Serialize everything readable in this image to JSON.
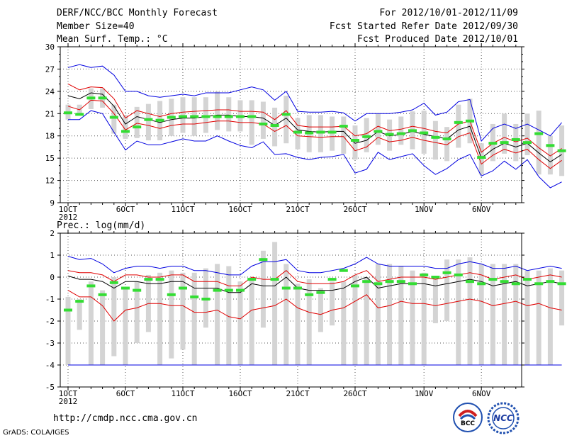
{
  "header": {
    "title": "DERF/NCC/BCC Monthly Forecast",
    "member_size": "Member Size=40",
    "variable": "Mean Surf. Temp.: °C",
    "period": "For 2012/10/01-2012/11/09",
    "started": "Fcst Started Refer Date 2012/09/30",
    "produced": "Fcst Produced Date 2012/10/01"
  },
  "footer": {
    "url": "http://cmdp.ncc.cma.gov.cn",
    "grads": "GrADS: COLA/IGES",
    "logo_bcc": "BCC",
    "logo_ncc": "NCC"
  },
  "colors": {
    "ensemble_mean": "#000000",
    "std_band": "#e00000",
    "extreme": "#0000e0",
    "observed": "#33dd33",
    "spread_bar": "#d4d4d4",
    "grid": "#555555"
  },
  "chart_data": [
    {
      "type": "line",
      "title": "Mean Surf. Temp.: °C",
      "x_tick_labels": [
        "1OCT",
        "6OCT",
        "11OCT",
        "16OCT",
        "21OCT",
        "26OCT",
        "1NOV",
        "6NOV"
      ],
      "x_tick_days": [
        1,
        6,
        11,
        16,
        21,
        26,
        32,
        37
      ],
      "year_label": "2012",
      "xlim": [
        0,
        40.5
      ],
      "ylim": [
        9,
        30
      ],
      "y_ticks": [
        9,
        12,
        15,
        18,
        21,
        24,
        27,
        30
      ],
      "y_tick_labels": [
        "9",
        "12",
        "15",
        "18",
        "21",
        "24",
        "27",
        "30"
      ],
      "series": [
        {
          "name": "ensemble mean",
          "values": [
            23.4,
            23.0,
            23.8,
            23.6,
            22.0,
            19.6,
            20.6,
            20.2,
            19.8,
            20.2,
            20.4,
            20.4,
            20.6,
            20.8,
            20.8,
            20.6,
            20.6,
            20.4,
            19.4,
            20.4,
            18.8,
            18.6,
            18.5,
            18.6,
            18.6,
            17.0,
            17.4,
            18.6,
            18.0,
            18.2,
            18.6,
            18.2,
            17.9,
            17.6,
            18.8,
            19.3,
            15.0,
            16.2,
            17.0,
            16.5,
            17.0,
            15.7,
            14.5,
            15.5
          ]
        },
        {
          "name": "std upper",
          "values": [
            25.0,
            24.2,
            24.6,
            24.5,
            23.0,
            20.4,
            21.4,
            21.0,
            20.6,
            21.0,
            21.2,
            21.3,
            21.4,
            21.5,
            21.5,
            21.3,
            21.3,
            21.2,
            20.2,
            21.4,
            19.4,
            19.2,
            19.2,
            19.2,
            19.3,
            18.0,
            18.3,
            19.3,
            18.7,
            18.9,
            19.3,
            19.0,
            18.6,
            18.4,
            19.6,
            20.0,
            15.8,
            17.0,
            17.8,
            17.2,
            17.7,
            16.4,
            15.3,
            16.3
          ]
        },
        {
          "name": "std lower",
          "values": [
            22.0,
            21.5,
            22.8,
            22.7,
            21.0,
            18.8,
            19.7,
            19.4,
            19.0,
            19.4,
            19.6,
            19.6,
            19.8,
            20.0,
            20.0,
            19.8,
            19.8,
            19.6,
            18.6,
            19.4,
            18.0,
            17.9,
            17.8,
            17.9,
            17.9,
            16.0,
            16.5,
            17.8,
            17.2,
            17.4,
            17.8,
            17.4,
            17.1,
            16.8,
            17.9,
            18.4,
            14.2,
            15.4,
            16.2,
            15.7,
            16.2,
            14.8,
            13.6,
            14.7
          ]
        },
        {
          "name": "maximum",
          "values": [
            27.2,
            27.6,
            27.2,
            27.4,
            26.2,
            24.0,
            24.0,
            23.4,
            23.2,
            23.4,
            23.6,
            23.4,
            23.8,
            23.8,
            23.8,
            24.2,
            24.6,
            24.2,
            22.8,
            24.0,
            21.3,
            21.2,
            21.2,
            21.3,
            21.1,
            20.0,
            21.0,
            21.0,
            21.0,
            21.2,
            21.5,
            22.4,
            20.8,
            21.2,
            22.6,
            22.9,
            17.3,
            19.0,
            19.6,
            19.0,
            19.6,
            18.8,
            18.0,
            19.8
          ]
        },
        {
          "name": "minimum",
          "values": [
            20.2,
            20.2,
            21.4,
            21.0,
            18.5,
            16.1,
            17.3,
            16.8,
            16.8,
            17.2,
            17.6,
            17.3,
            17.3,
            18.0,
            17.3,
            16.7,
            16.4,
            17.2,
            15.5,
            15.6,
            15.1,
            14.8,
            15.1,
            15.2,
            15.5,
            13.0,
            13.5,
            15.8,
            14.8,
            15.2,
            15.6,
            14.0,
            12.8,
            13.6,
            14.8,
            15.5,
            12.6,
            13.3,
            14.6,
            13.5,
            14.8,
            12.5,
            11.0,
            11.8
          ]
        },
        {
          "name": "observed",
          "values": [
            21.1,
            20.9,
            23.1,
            23.1,
            20.5,
            18.6,
            19.2,
            20.2,
            20.1,
            20.5,
            20.6,
            20.6,
            20.6,
            20.6,
            20.6,
            20.6,
            20.6,
            19.6,
            19.4,
            20.9,
            18.5,
            18.4,
            18.5,
            18.5,
            19.3,
            17.4,
            17.9,
            18.6,
            18.2,
            18.3,
            18.7,
            18.4,
            17.8,
            17.6,
            19.8,
            20.0,
            15.1,
            17.0,
            17.1,
            17.5,
            17.1,
            18.3,
            16.7,
            16.0
          ]
        }
      ],
      "spread_bars": {
        "high": [
          22.2,
          22.2,
          24.4,
          24.4,
          22.2,
          20.8,
          21.9,
          22.3,
          22.7,
          23.0,
          23.2,
          23.2,
          23.2,
          24.0,
          23.2,
          22.8,
          22.8,
          22.6,
          21.8,
          23.4,
          20.4,
          20.8,
          20.8,
          20.6,
          20.6,
          19.4,
          20.4,
          21.0,
          20.2,
          20.6,
          21.3,
          21.4,
          20.0,
          19.2,
          22.2,
          23.0,
          17.0,
          19.6,
          21.0,
          19.6,
          21.0,
          21.4,
          18.0,
          19.4
        ],
        "low": [
          20.2,
          20.8,
          21.6,
          21.8,
          18.3,
          17.6,
          17.7,
          17.4,
          17.4,
          18.0,
          18.4,
          18.0,
          18.4,
          18.8,
          18.6,
          18.6,
          16.8,
          17.6,
          16.6,
          17.0,
          16.2,
          15.8,
          15.8,
          16.0,
          15.6,
          14.8,
          15.8,
          16.8,
          16.0,
          16.8,
          16.2,
          15.6,
          14.8,
          14.6,
          16.4,
          17.0,
          12.8,
          14.6,
          15.6,
          14.6,
          15.4,
          12.8,
          12.8,
          12.6
        ]
      }
    },
    {
      "type": "line",
      "title": "Prec.: log(mm/d)",
      "x_tick_labels": [
        "1OCT",
        "6OCT",
        "11OCT",
        "16OCT",
        "21OCT",
        "26OCT",
        "1NOV",
        "6NOV"
      ],
      "x_tick_days": [
        1,
        6,
        11,
        16,
        21,
        26,
        32,
        37
      ],
      "year_label": "2012",
      "xlim": [
        0,
        40.5
      ],
      "ylim": [
        -5,
        2
      ],
      "y_ticks": [
        -5,
        -4,
        -3,
        -2,
        -1,
        0,
        1,
        2
      ],
      "y_tick_labels": [
        "-5",
        "-4",
        "-3",
        "-2",
        "-1",
        "0",
        "1",
        "2"
      ],
      "series": [
        {
          "name": "ensemble mean",
          "values": [
            0.05,
            -0.1,
            -0.1,
            -0.2,
            -0.5,
            -0.2,
            -0.2,
            -0.3,
            -0.3,
            -0.2,
            -0.2,
            -0.5,
            -0.5,
            -0.5,
            -0.7,
            -0.7,
            -0.3,
            -0.4,
            -0.4,
            0.0,
            -0.5,
            -0.6,
            -0.6,
            -0.6,
            -0.5,
            -0.2,
            0.0,
            -0.5,
            -0.4,
            -0.3,
            -0.3,
            -0.3,
            -0.4,
            -0.3,
            -0.2,
            -0.1,
            -0.2,
            -0.4,
            -0.3,
            -0.2,
            -0.4,
            -0.3,
            -0.2,
            -0.3
          ]
        },
        {
          "name": "std upper",
          "values": [
            0.3,
            0.2,
            0.2,
            0.1,
            -0.2,
            0.1,
            0.1,
            0.0,
            0.0,
            0.1,
            0.1,
            -0.2,
            -0.2,
            -0.2,
            -0.4,
            -0.4,
            0.0,
            -0.1,
            -0.1,
            0.3,
            -0.2,
            -0.3,
            -0.3,
            -0.3,
            -0.2,
            0.1,
            0.3,
            -0.2,
            -0.1,
            0.0,
            0.0,
            0.0,
            -0.1,
            0.0,
            0.1,
            0.2,
            0.1,
            -0.1,
            0.0,
            0.1,
            -0.1,
            0.0,
            0.1,
            0.0
          ]
        },
        {
          "name": "std lower",
          "values": [
            -0.6,
            -0.9,
            -0.9,
            -1.3,
            -2.0,
            -1.5,
            -1.4,
            -1.2,
            -1.2,
            -1.3,
            -1.3,
            -1.6,
            -1.6,
            -1.5,
            -1.8,
            -1.9,
            -1.5,
            -1.4,
            -1.3,
            -1.0,
            -1.4,
            -1.6,
            -1.7,
            -1.5,
            -1.4,
            -1.1,
            -0.8,
            -1.4,
            -1.3,
            -1.1,
            -1.2,
            -1.2,
            -1.3,
            -1.2,
            -1.1,
            -1.0,
            -1.1,
            -1.3,
            -1.2,
            -1.1,
            -1.3,
            -1.2,
            -1.4,
            -1.5
          ]
        },
        {
          "name": "maximum",
          "values": [
            0.95,
            0.8,
            0.85,
            0.6,
            0.2,
            0.4,
            0.5,
            0.5,
            0.4,
            0.5,
            0.5,
            0.3,
            0.3,
            0.2,
            0.1,
            0.1,
            0.5,
            0.7,
            0.7,
            0.8,
            0.3,
            0.2,
            0.2,
            0.3,
            0.4,
            0.6,
            0.9,
            0.6,
            0.5,
            0.5,
            0.5,
            0.5,
            0.4,
            0.4,
            0.6,
            0.7,
            0.6,
            0.4,
            0.4,
            0.5,
            0.3,
            0.4,
            0.5,
            0.4
          ]
        },
        {
          "name": "minimum",
          "values": [
            -4.0,
            -4.0,
            -4.0,
            -4.0,
            -4.0,
            -4.0,
            -4.0,
            -4.0,
            -4.0,
            -4.0,
            -4.0,
            -4.0,
            -4.0,
            -4.0,
            -4.0,
            -4.0,
            -4.0,
            -4.0,
            -4.0,
            -4.0,
            -4.0,
            -4.0,
            -4.0,
            -4.0,
            -4.0,
            -4.0,
            -4.0,
            -4.0,
            -4.0,
            -4.0,
            -4.0,
            -4.0,
            -4.0,
            -4.0,
            -4.0,
            -4.0,
            -4.0,
            -4.0,
            -4.0,
            -4.0,
            -4.0,
            -4.0,
            -4.0,
            -4.0
          ]
        },
        {
          "name": "observed",
          "values": [
            -1.5,
            -1.1,
            -0.4,
            -0.8,
            -0.25,
            -0.5,
            -0.6,
            -0.1,
            -0.1,
            -0.8,
            -0.5,
            -0.9,
            -1.0,
            -0.6,
            -0.6,
            -0.6,
            -0.1,
            0.8,
            -0.1,
            -0.5,
            -0.5,
            -0.8,
            -0.7,
            -0.1,
            0.3,
            -0.4,
            -0.2,
            -0.3,
            -0.2,
            -0.2,
            -0.3,
            0.1,
            0.0,
            0.2,
            0.1,
            -0.2,
            -0.3,
            -0.1,
            -0.2,
            -0.3,
            -0.1,
            -0.3,
            -0.2,
            -0.3
          ]
        }
      ],
      "spread_bars": {
        "high": [
          -0.9,
          -1.0,
          -0.2,
          -0.6,
          0.0,
          -0.5,
          -0.2,
          0.1,
          0.2,
          0.3,
          0.2,
          0.2,
          0.4,
          0.6,
          0.5,
          -0.2,
          0.0,
          1.2,
          1.6,
          0.6,
          -0.3,
          -0.1,
          -0.5,
          -0.2,
          -0.2,
          0.1,
          0.0,
          0.6,
          0.6,
          0.5,
          0.3,
          0.2,
          0.0,
          0.8,
          0.8,
          0.9,
          0.6,
          0.6,
          0.6,
          0.6,
          0.3,
          0.3,
          0.4,
          0.3
        ],
        "low": [
          -4.0,
          -2.4,
          -4.0,
          -4.0,
          -3.6,
          -4.0,
          -3.0,
          -2.5,
          -4.0,
          -3.7,
          -3.3,
          -4.0,
          -2.3,
          -4.0,
          -4.0,
          -4.0,
          -4.0,
          -2.3,
          -4.0,
          -4.0,
          -4.0,
          -4.0,
          -2.5,
          -2.2,
          -4.0,
          -4.0,
          -4.0,
          -4.0,
          -4.0,
          -4.0,
          -4.0,
          -4.0,
          -2.1,
          -2.0,
          -4.0,
          -4.0,
          -4.0,
          -4.0,
          -4.0,
          -4.0,
          -4.0,
          -4.0,
          -4.0,
          -2.2
        ]
      }
    }
  ]
}
